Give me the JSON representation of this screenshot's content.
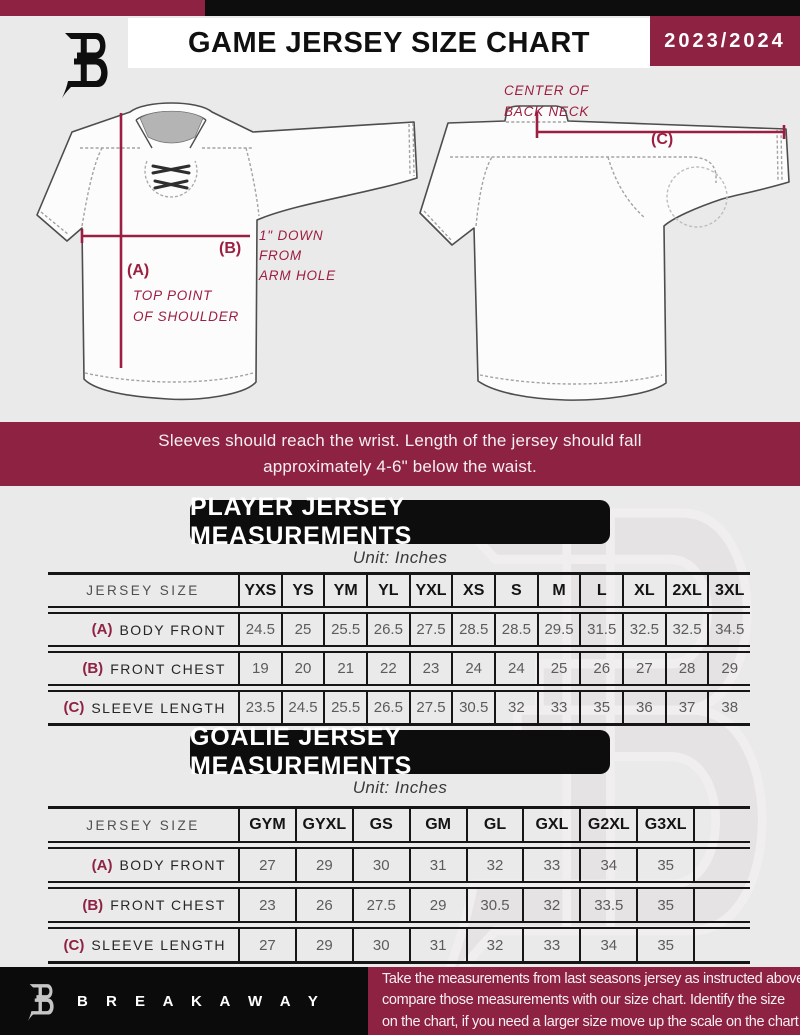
{
  "header": {
    "title": "GAME JERSEY SIZE CHART",
    "season": "2023/2024"
  },
  "diagram": {
    "front": {
      "a_key": "(A)",
      "a_lines": [
        "TOP POINT",
        "OF SHOULDER"
      ],
      "b_key": "(B)",
      "b_lines": [
        "1\" DOWN",
        "FROM",
        "ARM HOLE"
      ]
    },
    "back": {
      "c_key": "(C)",
      "c_lines": [
        "CENTER OF",
        "BACK NECK"
      ]
    }
  },
  "notice": {
    "line1": "Sleeves should reach the wrist. Length of the jersey should fall",
    "line2": "approximately 4-6\" below the waist."
  },
  "player": {
    "title": "PLAYER JERSEY MEASUREMENTS",
    "unit": "Unit: Inches",
    "corner": "JERSEY SIZE",
    "sizes": [
      "YXS",
      "YS",
      "YM",
      "YL",
      "YXL",
      "XS",
      "S",
      "M",
      "L",
      "XL",
      "2XL",
      "3XL"
    ],
    "rows": [
      {
        "key": "(A)",
        "label": "BODY FRONT",
        "values": [
          "24.5",
          "25",
          "25.5",
          "26.5",
          "27.5",
          "28.5",
          "28.5",
          "29.5",
          "31.5",
          "32.5",
          "32.5",
          "34.5"
        ]
      },
      {
        "key": "(B)",
        "label": "FRONT CHEST",
        "values": [
          "19",
          "20",
          "21",
          "22",
          "23",
          "24",
          "24",
          "25",
          "26",
          "27",
          "28",
          "29"
        ]
      },
      {
        "key": "(C)",
        "label": "SLEEVE LENGTH",
        "values": [
          "23.5",
          "24.5",
          "25.5",
          "26.5",
          "27.5",
          "30.5",
          "32",
          "33",
          "35",
          "36",
          "37",
          "38"
        ]
      }
    ]
  },
  "goalie": {
    "title": "GOALIE JERSEY MEASUREMENTS",
    "unit": "Unit: Inches",
    "corner": "JERSEY SIZE",
    "sizes": [
      "GYM",
      "GYXL",
      "GS",
      "GM",
      "GL",
      "GXL",
      "G2XL",
      "G3XL",
      ""
    ],
    "rows": [
      {
        "key": "(A)",
        "label": "BODY FRONT",
        "values": [
          "27",
          "29",
          "30",
          "31",
          "32",
          "33",
          "34",
          "35",
          ""
        ]
      },
      {
        "key": "(B)",
        "label": "FRONT CHEST",
        "values": [
          "23",
          "26",
          "27.5",
          "29",
          "30.5",
          "32",
          "33.5",
          "35",
          ""
        ]
      },
      {
        "key": "(C)",
        "label": "SLEEVE LENGTH",
        "values": [
          "27",
          "29",
          "30",
          "31",
          "32",
          "33",
          "34",
          "35",
          ""
        ]
      }
    ]
  },
  "footer": {
    "brand": "B R E A K A W A Y",
    "lines": [
      "Take the measurements from last seasons jersey as instructed above",
      "compare those measurements  with our size chart. Identify the size",
      "on the chart, if you need a larger size move up the scale on the chart"
    ]
  },
  "colors": {
    "maroon": "#8E2243",
    "annotation_maroon": "#9C1E40",
    "black": "#0D0D0D",
    "background": "#EBEAEA"
  }
}
